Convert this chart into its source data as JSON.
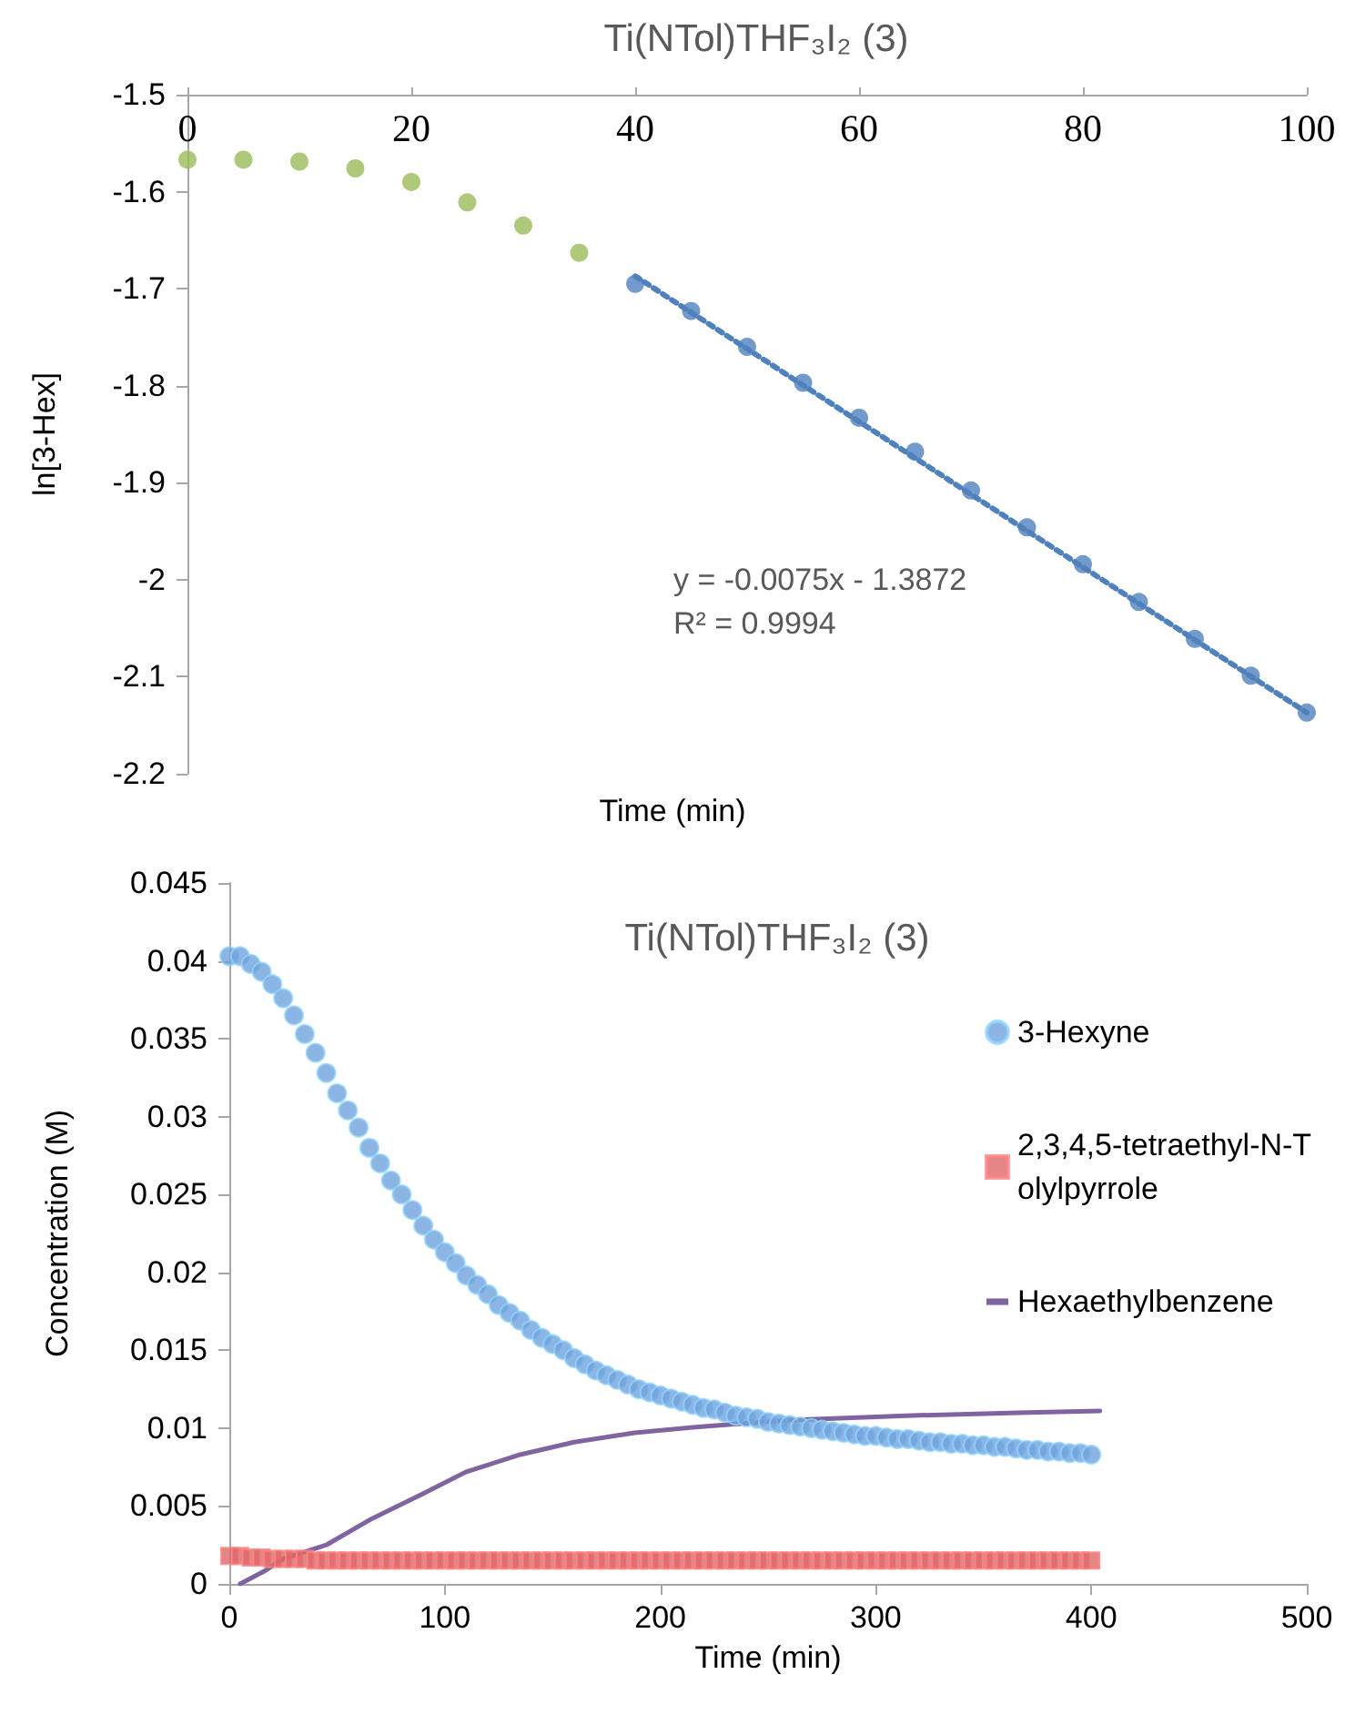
{
  "chart_data": [
    {
      "type": "scatter",
      "title": "Ti(NTol)THF₃I₂ (3)",
      "xlabel": "Time (min)",
      "ylabel": "ln[3-Hex]",
      "xlim": [
        0,
        100
      ],
      "xticks": [
        0,
        20,
        40,
        60,
        80,
        100
      ],
      "ylim": [
        -2.2,
        -1.5
      ],
      "yticks": [
        -2.2,
        -2.1,
        -2,
        -1.9,
        -1.8,
        -1.7,
        -1.6,
        -1.5
      ],
      "grid": false,
      "legend": false,
      "marker": "circle",
      "annotations": [
        "y = -0.0075x - 1.3872",
        "R² = 0.9994"
      ],
      "series": [
        {
          "color": "#9bbb59",
          "x": [
            0,
            5,
            10,
            15,
            20,
            25,
            30,
            35
          ],
          "values": [
            -1.567,
            -1.567,
            -1.569,
            -1.576,
            -1.59,
            -1.611,
            -1.635,
            -1.663
          ]
        },
        {
          "color": "#4f81bd",
          "x": [
            40,
            45,
            50,
            55,
            60,
            65,
            70,
            75,
            80,
            85,
            90,
            95,
            100
          ],
          "values": [
            -1.695,
            -1.723,
            -1.76,
            -1.797,
            -1.833,
            -1.868,
            -1.908,
            -1.946,
            -1.984,
            -2.023,
            -2.061,
            -2.099,
            -2.137
          ]
        },
        {
          "type": "line",
          "marker": "none",
          "line_style": "dotted",
          "color": "#4f81bd",
          "x": [
            40,
            100
          ],
          "values": [
            -1.687,
            -2.137
          ]
        }
      ]
    },
    {
      "type": "scatter",
      "title": "Ti(NTol)THF₃I₂ (3)",
      "xlabel": "Time (min)",
      "ylabel": "Concentration (M)",
      "xlim": [
        0,
        500
      ],
      "xticks": [
        0,
        100,
        200,
        300,
        400,
        500
      ],
      "ylim": [
        0,
        0.045
      ],
      "yticks": [
        0,
        0.005,
        0.01,
        0.015,
        0.02,
        0.025,
        0.03,
        0.035,
        0.04,
        0.045
      ],
      "grid": false,
      "legend": "right",
      "x": [
        0,
        5,
        10,
        15,
        20,
        25,
        30,
        35,
        40,
        45,
        50,
        55,
        60,
        65,
        70,
        75,
        80,
        85,
        90,
        95,
        100,
        105,
        110,
        115,
        120,
        125,
        130,
        135,
        140,
        145,
        150,
        155,
        160,
        165,
        170,
        175,
        180,
        185,
        190,
        195,
        200,
        205,
        210,
        215,
        220,
        225,
        230,
        235,
        240,
        245,
        250,
        255,
        260,
        265,
        270,
        275,
        280,
        285,
        290,
        295,
        300,
        305,
        310,
        315,
        320,
        325,
        330,
        335,
        340,
        345,
        350,
        355,
        360,
        365,
        370,
        375,
        380,
        385,
        390,
        395,
        400
      ],
      "series": [
        {
          "name": "3-Hexyne",
          "marker": "circle",
          "color": "#6fa3dc",
          "values": [
            0.0403,
            0.0403,
            0.0398,
            0.0393,
            0.0385,
            0.0376,
            0.0365,
            0.0353,
            0.0341,
            0.0328,
            0.0315,
            0.0304,
            0.0293,
            0.028,
            0.027,
            0.0259,
            0.025,
            0.024,
            0.023,
            0.0221,
            0.0213,
            0.0206,
            0.0198,
            0.0192,
            0.0186,
            0.0179,
            0.0174,
            0.0169,
            0.0163,
            0.0158,
            0.0154,
            0.015,
            0.0145,
            0.0141,
            0.0137,
            0.0134,
            0.0131,
            0.0128,
            0.0125,
            0.0123,
            0.0121,
            0.0119,
            0.0117,
            0.0115,
            0.0113,
            0.0112,
            0.011,
            0.0108,
            0.0107,
            0.0106,
            0.0104,
            0.0103,
            0.0102,
            0.0101,
            0.01,
            0.0099,
            0.0098,
            0.0097,
            0.0096,
            0.0095,
            0.0095,
            0.0094,
            0.0093,
            0.0093,
            0.0092,
            0.0091,
            0.0091,
            0.009,
            0.009,
            0.0089,
            0.0089,
            0.0088,
            0.0088,
            0.0087,
            0.0086,
            0.0086,
            0.0085,
            0.0085,
            0.0084,
            0.0084,
            0.0083
          ]
        },
        {
          "name": "2,3,4,5-tetraethyl-N-Tolylpyrrole",
          "marker": "square",
          "color": "#e06666",
          "values": [
            0.0018,
            0.0018,
            0.0017,
            0.0017,
            0.0016,
            0.0016,
            0.0016,
            0.0016,
            0.0015,
            0.0015,
            0.0015,
            0.0015,
            0.0015,
            0.0015,
            0.0015,
            0.0015,
            0.0015,
            0.0015,
            0.0015,
            0.0015,
            0.0015,
            0.0015,
            0.0015,
            0.0015,
            0.0015,
            0.0015,
            0.0015,
            0.0015,
            0.0015,
            0.0015,
            0.0015,
            0.0015,
            0.0015,
            0.0015,
            0.0015,
            0.0015,
            0.0015,
            0.0015,
            0.0015,
            0.0015,
            0.0015,
            0.0015,
            0.0015,
            0.0015,
            0.0015,
            0.0015,
            0.0015,
            0.0015,
            0.0015,
            0.0015,
            0.0015,
            0.0015,
            0.0015,
            0.0015,
            0.0015,
            0.0015,
            0.0015,
            0.0015,
            0.0015,
            0.0015,
            0.0015,
            0.0015,
            0.0015,
            0.0015,
            0.0015,
            0.0015,
            0.0015,
            0.0015,
            0.0015,
            0.0015,
            0.0015,
            0.0015,
            0.0015,
            0.0015,
            0.0015,
            0.0015,
            0.0015,
            0.0015,
            0.0015,
            0.0015,
            0.0015
          ]
        },
        {
          "name": "Hexaethylbenzene",
          "type": "line",
          "marker": "none",
          "line_style": "solid",
          "color": "#8064a2",
          "x": [
            5,
            16,
            25,
            45,
            65,
            90,
            110,
            135,
            160,
            188,
            219,
            258,
            314,
            370,
            404
          ],
          "values": [
            0,
            0.0008,
            0.0016,
            0.0025,
            0.0041,
            0.0058,
            0.0072,
            0.0083,
            0.0091,
            0.0097,
            0.0101,
            0.0105,
            0.0108,
            0.011,
            0.0111
          ]
        }
      ]
    }
  ]
}
